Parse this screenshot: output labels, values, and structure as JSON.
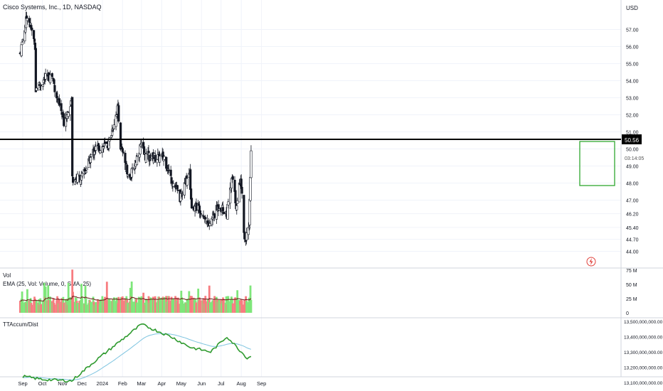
{
  "header": {
    "title": "Cisco Systems, Inc., 1D, NASDAQ"
  },
  "currency": "USD",
  "price_axis": {
    "ticks": [
      "58.00",
      "57.00",
      "56.00",
      "55.00",
      "54.00",
      "53.00",
      "52.00",
      "51.00",
      "50.00",
      "49.00",
      "48.00",
      "47.00",
      "46.20",
      "45.40",
      "44.70",
      "44.00"
    ]
  },
  "horizontal_line": {
    "price_label": "50.56",
    "color": "#000000"
  },
  "countdown": "03:14:05",
  "volume_pane": {
    "title": "Vol",
    "ema_label": "EMA (25, Vol: Volume, 0, SMA, 25)",
    "axis_ticks": [
      "75 M",
      "50 M",
      "25 M",
      "0"
    ]
  },
  "accum_pane": {
    "title": "TTAccum/Dist",
    "axis_ticks": [
      "13,500,000,000.00",
      "13,400,000,000.00",
      "13,300,000,000.00",
      "13,200,000,000.00",
      "13,100,000,000.00"
    ]
  },
  "x_axis": {
    "labels": [
      "Sep",
      "Oct",
      "Nov",
      "Dec",
      "2024",
      "Feb",
      "Mar",
      "Apr",
      "May",
      "Jun",
      "Jul",
      "Aug",
      "Sep"
    ]
  },
  "colors": {
    "up": "#22ab94",
    "down": "#131722",
    "vol_up": "#7ee67a",
    "vol_down": "#f77c80",
    "accum": "#2e9a2e",
    "accum_ma": "#7ec4e0",
    "highlight": "#2fa82f"
  },
  "chart_data": {
    "type": "candlestick",
    "title": "Cisco Systems, Inc., 1D, NASDAQ",
    "x_range": [
      "2023-09",
      "2024-09"
    ],
    "y_range": [
      43.8,
      58.5
    ],
    "close_path_x": [
      "2023-08-28",
      "2023-09-08",
      "2023-09-20",
      "2023-09-21",
      "2023-10-05",
      "2023-10-16",
      "2023-10-26",
      "2023-11-03",
      "2023-11-15",
      "2023-11-16",
      "2023-12-01",
      "2023-12-20",
      "2024-01-10",
      "2024-01-25",
      "2024-01-29",
      "2024-02-05",
      "2024-02-12",
      "2024-02-29",
      "2024-03-06",
      "2024-03-20",
      "2024-04-05",
      "2024-04-15",
      "2024-04-30",
      "2024-05-14",
      "2024-05-16",
      "2024-05-31",
      "2024-06-12",
      "2024-06-28",
      "2024-07-10",
      "2024-07-18",
      "2024-07-25",
      "2024-07-31",
      "2024-08-06",
      "2024-08-13",
      "2024-08-15",
      "2024-08-16"
    ],
    "close_path_y": [
      55.6,
      57.9,
      56.1,
      53.5,
      54.1,
      54.3,
      52.6,
      51.6,
      52.9,
      48.3,
      48.3,
      50.0,
      50.2,
      52.5,
      50.1,
      49.2,
      48.2,
      50.2,
      49.6,
      49.5,
      49.5,
      48.3,
      47.1,
      48.8,
      46.8,
      46.5,
      45.5,
      46.7,
      46.2,
      48.3,
      46.5,
      48.5,
      44.7,
      45.2,
      48.4,
      49.8
    ],
    "volume_m": {
      "high_spikes": [
        {
          "date": "2023-11-16",
          "value": 76
        },
        {
          "date": "2024-02-15",
          "value": 55
        },
        {
          "date": "2024-08-15",
          "value": 48
        }
      ],
      "typical": 20
    },
    "accum_dist": {
      "x": [
        "2023-09-01",
        "2023-10-01",
        "2023-11-15",
        "2023-12-15",
        "2024-01-25",
        "2024-03-01",
        "2024-04-15",
        "2024-05-15",
        "2024-06-15",
        "2024-07-10",
        "2024-08-10",
        "2024-08-16"
      ],
      "y": [
        13140000000,
        13120000000,
        13110000000,
        13220000000,
        13360000000,
        13480000000,
        13400000000,
        13330000000,
        13300000000,
        13400000000,
        13260000000,
        13270000000
      ]
    }
  }
}
